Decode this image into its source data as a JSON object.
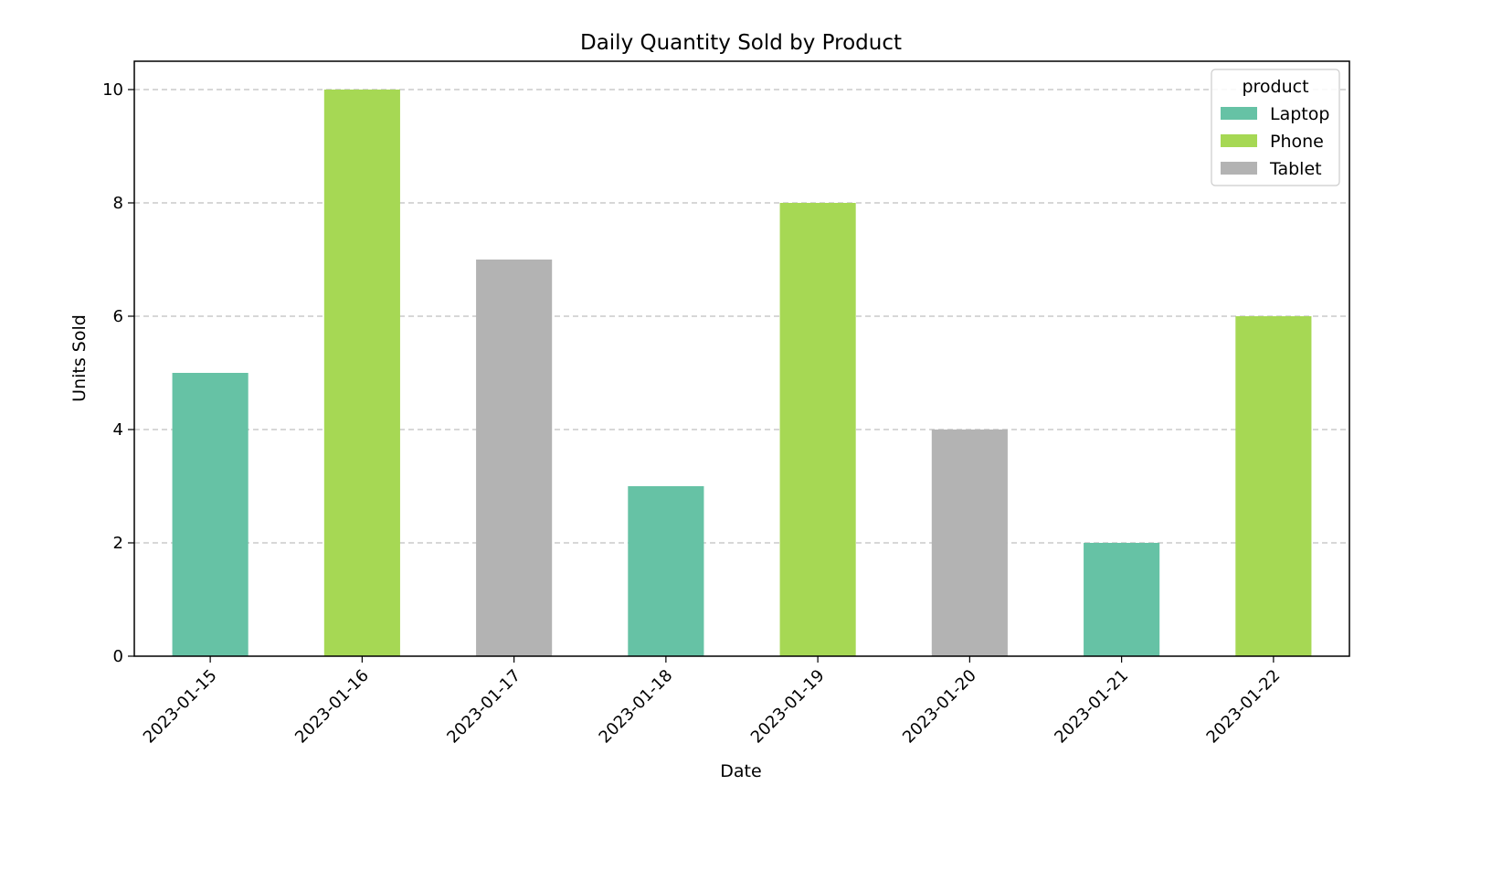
{
  "chart_data": {
    "type": "bar",
    "title": "Daily Quantity Sold by Product",
    "xlabel": "Date",
    "ylabel": "Units Sold",
    "categories": [
      "2023-01-15",
      "2023-01-16",
      "2023-01-17",
      "2023-01-18",
      "2023-01-19",
      "2023-01-20",
      "2023-01-21",
      "2023-01-22"
    ],
    "series": [
      {
        "name": "Laptop",
        "color": "#66c2a5",
        "values": [
          5,
          0,
          0,
          3,
          0,
          0,
          2,
          0
        ]
      },
      {
        "name": "Phone",
        "color": "#a6d854",
        "values": [
          0,
          10,
          0,
          0,
          8,
          0,
          0,
          6
        ]
      },
      {
        "name": "Tablet",
        "color": "#b3b3b3",
        "values": [
          0,
          0,
          7,
          0,
          0,
          4,
          0,
          0
        ]
      }
    ],
    "stacked": true,
    "ylim": [
      0,
      10.5
    ],
    "yticks": [
      0,
      2,
      4,
      6,
      8,
      10
    ],
    "grid": "y-dashed",
    "legend": {
      "title": "product",
      "position": "top-right"
    },
    "xtick_rotation": 45
  }
}
